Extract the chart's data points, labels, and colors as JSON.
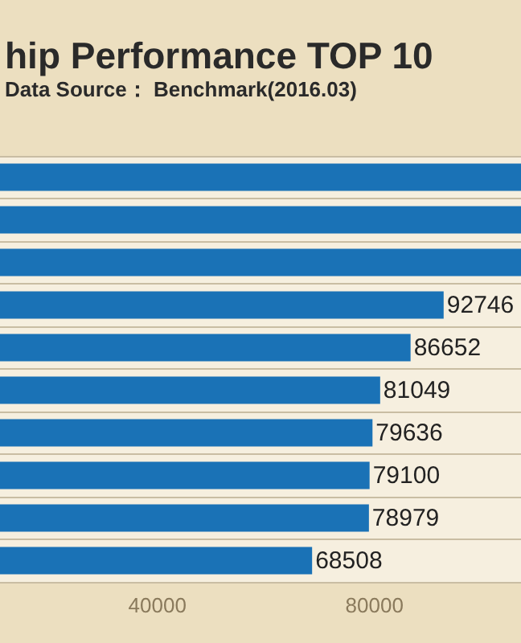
{
  "chart_data": {
    "type": "bar",
    "orientation": "horizontal",
    "title": "hip Performance TOP 10",
    "subtitle": "Data Source： Benchmark(2016.03)",
    "categories": [
      null,
      null,
      null,
      null,
      null,
      null,
      null,
      null,
      null,
      null
    ],
    "values": [
      107000,
      107000,
      107000,
      92746,
      86652,
      81049,
      79636,
      79100,
      78979,
      68508
    ],
    "value_labels": [
      null,
      null,
      null,
      "92746",
      "86652",
      "81049",
      "79636",
      "79100",
      "78979",
      "68508"
    ],
    "color": "#1a72b6",
    "xlim": [
      11000,
      107000
    ],
    "xticks": [
      40000,
      80000
    ],
    "grid": "y",
    "tick_labels": "x"
  }
}
